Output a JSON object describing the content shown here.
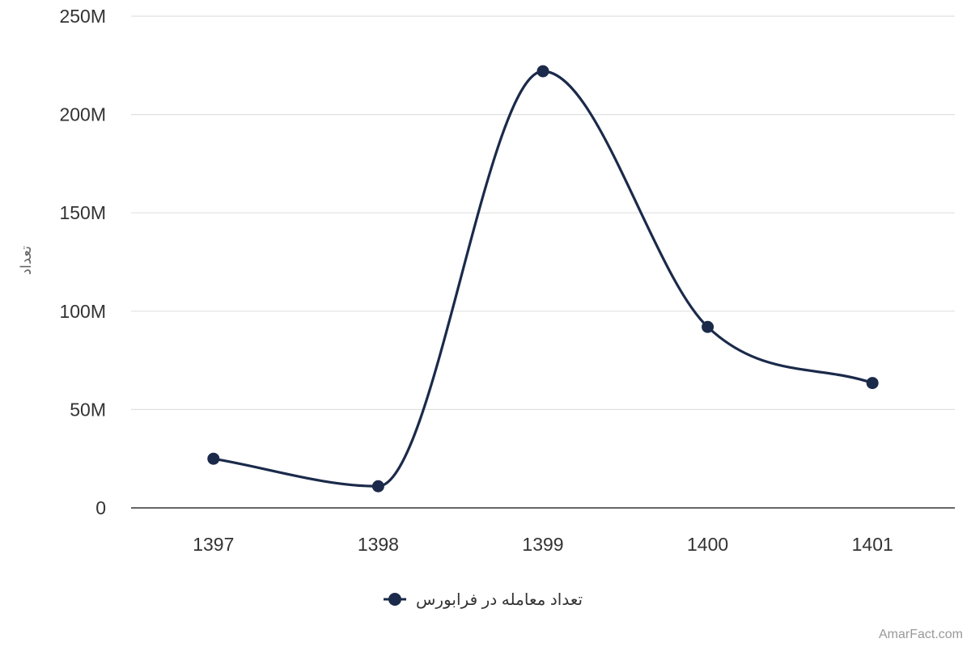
{
  "chart_data": {
    "type": "line",
    "categories": [
      "1397",
      "1398",
      "1399",
      "1400",
      "1401"
    ],
    "series": [
      {
        "name": "تعداد معامله در فرابورس",
        "values": [
          25000000,
          11000000,
          222000000,
          92000000,
          63500000
        ],
        "color": "#1b2a4a"
      }
    ],
    "ylabel": "تعداد",
    "xlabel": "",
    "ylim": [
      0,
      250000000
    ],
    "yticks": [
      0,
      50000000,
      100000000,
      150000000,
      200000000,
      250000000
    ],
    "ytick_labels": [
      "0",
      "50M",
      "100M",
      "150M",
      "200M",
      "250M"
    ],
    "grid": true,
    "legend_position": "bottom-center",
    "smooth": true
  },
  "credit": "AmarFact.com",
  "colors": {
    "grid": "#e0e0e0",
    "axis": "#333333",
    "series": "#1b2a4a"
  }
}
